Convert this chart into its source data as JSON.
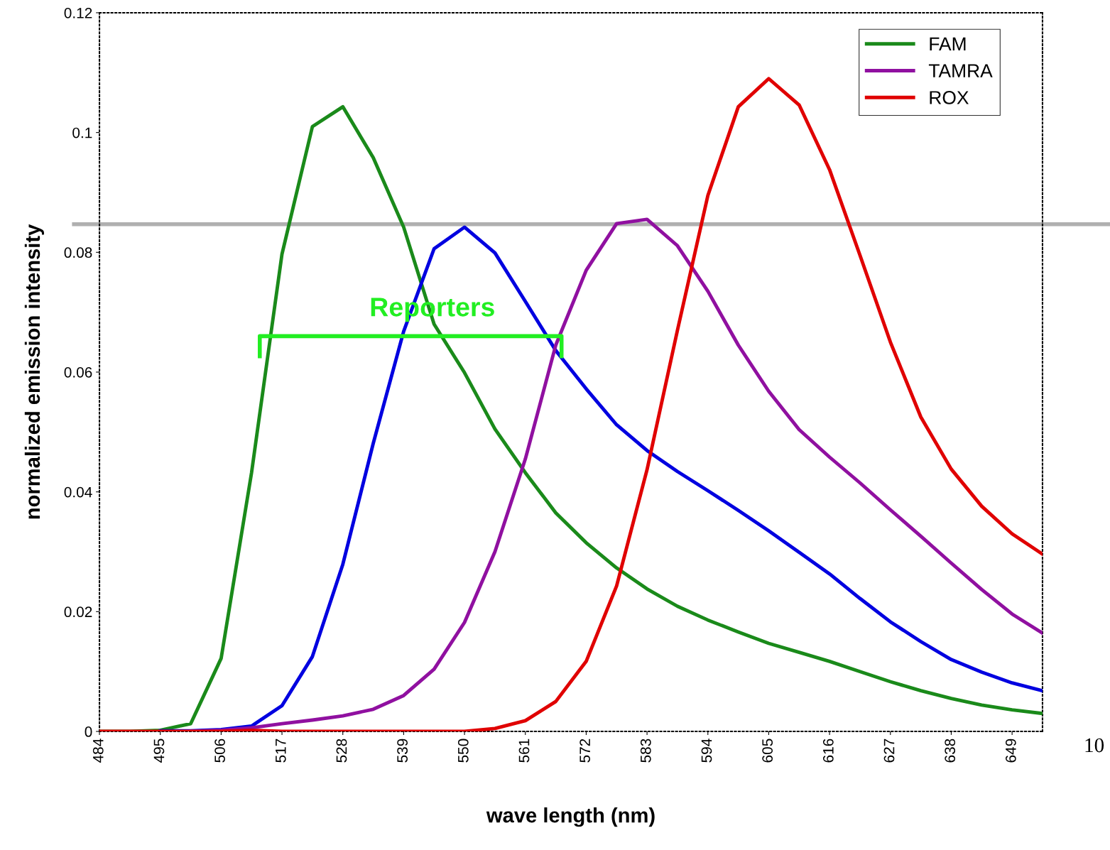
{
  "chart_data": {
    "type": "line",
    "xlabel": "wave length (nm)",
    "ylabel": "normalized emission intensity",
    "x": [
      484,
      489.5,
      495,
      500.5,
      506,
      511.5,
      517,
      522.5,
      528,
      533.5,
      539,
      544.5,
      550,
      555.5,
      561,
      566.5,
      572,
      577.5,
      583,
      588.5,
      594,
      599.5,
      605,
      610.5,
      616,
      621.5,
      627,
      632.5,
      638,
      643.5,
      649,
      654.5
    ],
    "series": [
      {
        "name": "FAM",
        "color": "#1a8a1a",
        "values": [
          0,
          0,
          0.0002,
          0.0013,
          0.0122,
          0.0432,
          0.0797,
          0.101,
          0.1043,
          0.0958,
          0.0842,
          0.068,
          0.0599,
          0.0505,
          0.0432,
          0.0365,
          0.0315,
          0.0273,
          0.0238,
          0.0209,
          0.0186,
          0.0166,
          0.0147,
          0.0132,
          0.0117,
          0.01,
          0.0083,
          0.0068,
          0.0055,
          0.0044,
          0.0036,
          0.003
        ]
      },
      {
        "color": "#0000e0",
        "values": [
          null,
          null,
          0.0001,
          0.0001,
          0.0003,
          0.0009,
          0.0043,
          0.0125,
          0.0279,
          0.0481,
          0.0668,
          0.0806,
          0.0842,
          0.0799,
          0.0718,
          0.0636,
          0.0572,
          0.0512,
          0.0469,
          0.0434,
          0.0402,
          0.0369,
          0.0335,
          0.0299,
          0.0263,
          0.0222,
          0.0183,
          0.015,
          0.012,
          0.0099,
          0.0081,
          0.0068
        ]
      },
      {
        "name": "TAMRA",
        "color": "#9010a0",
        "values": [
          null,
          null,
          null,
          0,
          0.0002,
          0.0006,
          0.0013,
          0.0019,
          0.0026,
          0.0037,
          0.006,
          0.0104,
          0.0182,
          0.03,
          0.0455,
          0.0645,
          0.077,
          0.0848,
          0.0855,
          0.0811,
          0.0735,
          0.0645,
          0.0568,
          0.0504,
          0.0458,
          0.0415,
          0.037,
          0.0326,
          0.0281,
          0.0237,
          0.0196,
          0.0164
        ]
      },
      {
        "name": "ROX",
        "color": "#e00000",
        "values": [
          0,
          0,
          0,
          0,
          0,
          0.0002,
          0,
          0,
          0,
          0,
          0,
          0,
          0,
          0.0005,
          0.0018,
          0.005,
          0.0117,
          0.0243,
          0.0437,
          0.067,
          0.0895,
          0.1043,
          0.109,
          0.1046,
          0.0938,
          0.0795,
          0.065,
          0.0525,
          0.0438,
          0.0376,
          0.033,
          0.0296
        ]
      }
    ],
    "xlim": [
      484,
      654.5
    ],
    "xticks": [
      484,
      495,
      506,
      517,
      528,
      539,
      550,
      561,
      572,
      583,
      594,
      605,
      616,
      627,
      638,
      649
    ],
    "ylim": [
      0,
      0.12
    ],
    "yticks": [
      {
        "value": 0,
        "label": "0"
      },
      0.02,
      0.04,
      0.06,
      0.08,
      0.1,
      0.12
    ],
    "ref_lines": [
      {
        "axis": "y",
        "value": 0.0847,
        "color": "#b0b0b0"
      }
    ],
    "annotations": [
      "Reporters",
      "10"
    ],
    "legend": "top right",
    "grid": false
  }
}
